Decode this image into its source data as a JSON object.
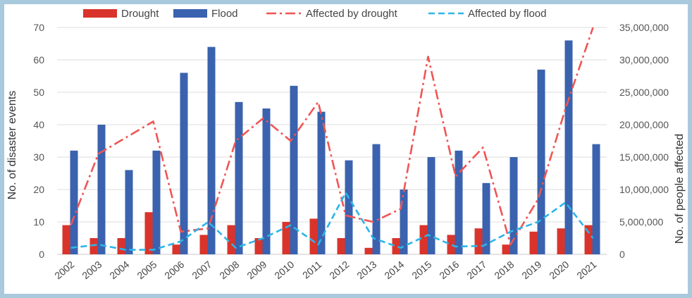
{
  "chart_data": {
    "type": "bar",
    "categories": [
      "2002",
      "2003",
      "2004",
      "2005",
      "2006",
      "2007",
      "2008",
      "2009",
      "2010",
      "2011",
      "2012",
      "2013",
      "2014",
      "2015",
      "2016",
      "2017",
      "2018",
      "2019",
      "2020",
      "2021"
    ],
    "series": [
      {
        "name": "Drought",
        "kind": "bar",
        "axis": "left",
        "color": "#d9342b",
        "values": [
          9,
          5,
          5,
          13,
          3,
          6,
          9,
          5,
          10,
          11,
          5,
          2,
          5,
          9,
          6,
          8,
          3,
          7,
          8,
          9
        ]
      },
      {
        "name": "Flood",
        "kind": "bar",
        "axis": "left",
        "color": "#3a62ae",
        "values": [
          32,
          40,
          26,
          32,
          56,
          64,
          47,
          45,
          52,
          44,
          29,
          34,
          20,
          30,
          32,
          22,
          30,
          57,
          66,
          34
        ]
      },
      {
        "name": "Affected by drought",
        "kind": "line",
        "axis": "right",
        "color": "#f05555",
        "dash": "dash-dot",
        "values": [
          4500000,
          15500000,
          18000000,
          20500000,
          3500000,
          4000000,
          17500000,
          21000000,
          17500000,
          23500000,
          6000000,
          5000000,
          7000000,
          30500000,
          12000000,
          16500000,
          1500000,
          8500000,
          22500000,
          35000000
        ]
      },
      {
        "name": "Affected by flood",
        "kind": "line",
        "axis": "right",
        "color": "#2cb5e8",
        "dash": "dashed",
        "values": [
          1000000,
          1500000,
          700000,
          700000,
          2000000,
          5000000,
          1000000,
          2500000,
          4500000,
          1500000,
          9500000,
          2500000,
          1000000,
          3000000,
          1200000,
          1300000,
          3500000,
          5000000,
          8000000,
          2500000
        ]
      }
    ],
    "ylabel": "No. of disaster events",
    "y2label": "No. of people affected",
    "ylim": [
      0,
      70
    ],
    "yticks": [
      0,
      10,
      20,
      30,
      40,
      50,
      60,
      70
    ],
    "y2lim": [
      0,
      35000000
    ],
    "y2ticks": [
      "0",
      "5,000,000",
      "10,000,000",
      "15,000,000",
      "20,000,000",
      "25,000,000",
      "30,000,000",
      "35,000,000"
    ],
    "grid": true,
    "legend": "top"
  }
}
